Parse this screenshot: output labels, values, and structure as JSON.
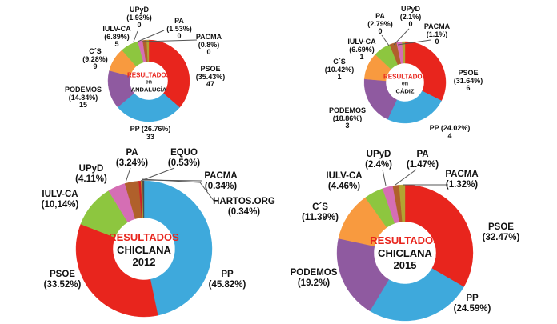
{
  "page": {
    "background": "#ffffff",
    "accent_red": "#e8251d",
    "label_color": "#111111",
    "leader_line_color": "#555555"
  },
  "chart_data": [
    {
      "id": "andalucia",
      "type": "pie",
      "title": "RESULTADOS en ANDALUCÍA",
      "center_lines": [
        "RESULTADOS",
        "en",
        "ANDALUCÍA"
      ],
      "legend_position": "around-slices",
      "segments": [
        {
          "name": "PSOE",
          "percent": 35.43,
          "seats": 47,
          "color": "#e8251d",
          "label_lines": [
            "PSOE",
            "(35.43%)",
            "47"
          ]
        },
        {
          "name": "PP",
          "percent": 26.76,
          "seats": 33,
          "color": "#3ea9dc",
          "label_lines": [
            "PP (26.76%)",
            "33"
          ]
        },
        {
          "name": "PODEMOS",
          "percent": 14.84,
          "seats": 15,
          "color": "#8f5aa0",
          "label_lines": [
            "PODEMOS",
            "(14.84%)",
            "15"
          ]
        },
        {
          "name": "C´S",
          "percent": 9.28,
          "seats": 9,
          "color": "#f89a3f",
          "label_lines": [
            "C´S",
            "(9.28%)",
            "9"
          ]
        },
        {
          "name": "IULV-CA",
          "percent": 6.89,
          "seats": 5,
          "color": "#8dc63f",
          "label_lines": [
            "IULV-CA",
            "(6.89%)",
            "5"
          ]
        },
        {
          "name": "UPyD",
          "percent": 1.93,
          "seats": 0,
          "color": "#d56eb4",
          "label_lines": [
            "UPyD",
            "(1.93%)",
            "0"
          ]
        },
        {
          "name": "PA",
          "percent": 1.53,
          "seats": 0,
          "color": "#b0602b",
          "label_lines": [
            "PA",
            "(1.53%)",
            "0"
          ]
        },
        {
          "name": "PACMA",
          "percent": 0.8,
          "seats": 0,
          "color": "#b2a432",
          "label_lines": [
            "PACMA",
            "(0.8%)",
            "0"
          ]
        }
      ]
    },
    {
      "id": "cadiz",
      "type": "pie",
      "title": "RESULTADOS en CÁDIZ",
      "center_lines": [
        "RESULTADOS",
        "en",
        "CÁDIZ"
      ],
      "legend_position": "around-slices",
      "segments": [
        {
          "name": "PSOE",
          "percent": 31.64,
          "seats": 6,
          "color": "#e8251d",
          "label_lines": [
            "PSOE",
            "(31.64%)",
            "6"
          ]
        },
        {
          "name": "PP",
          "percent": 24.02,
          "seats": 4,
          "color": "#3ea9dc",
          "label_lines": [
            "PP (24.02%)",
            "4"
          ]
        },
        {
          "name": "PODEMOS",
          "percent": 18.86,
          "seats": 3,
          "color": "#8f5aa0",
          "label_lines": [
            "PODEMOS",
            "(18.86%)",
            "3"
          ]
        },
        {
          "name": "C´S",
          "percent": 10.42,
          "seats": 1,
          "color": "#f89a3f",
          "label_lines": [
            "C´S",
            "(10.42%)",
            "1"
          ]
        },
        {
          "name": "IULV-CA",
          "percent": 6.69,
          "seats": 1,
          "color": "#8dc63f",
          "label_lines": [
            "IULV-CA",
            "(6.69%)",
            "1"
          ]
        },
        {
          "name": "PA",
          "percent": 2.79,
          "seats": 0,
          "color": "#b0602b",
          "label_lines": [
            "PA",
            "(2.79%)",
            "0"
          ]
        },
        {
          "name": "UPyD",
          "percent": 2.1,
          "seats": 0,
          "color": "#d56eb4",
          "label_lines": [
            "UPyD",
            "(2.1%)",
            "0"
          ]
        },
        {
          "name": "PACMA",
          "percent": 1.1,
          "seats": 0,
          "color": "#b2a432",
          "label_lines": [
            "PACMA",
            "(1.1%)",
            "0"
          ]
        }
      ]
    },
    {
      "id": "chiclana-2012",
      "type": "pie",
      "title": "RESULTADOS CHICLANA 2012",
      "center_lines": [
        "RESULTADOS",
        "CHICLANA",
        "2012"
      ],
      "legend_position": "around-slices",
      "segments": [
        {
          "name": "PP",
          "percent": 45.82,
          "color": "#3ea9dc",
          "label_lines": [
            "PP",
            "(45.82%)"
          ]
        },
        {
          "name": "PSOE",
          "percent": 33.52,
          "color": "#e8251d",
          "label_lines": [
            "PSOE",
            "(33.52%)"
          ]
        },
        {
          "name": "IULV-CA",
          "percent": 10.14,
          "color": "#8dc63f",
          "label_lines": [
            "IULV-CA",
            "(10,14%)"
          ]
        },
        {
          "name": "UPyD",
          "percent": 4.11,
          "color": "#d56eb4",
          "label_lines": [
            "UPyD",
            "(4.11%)"
          ]
        },
        {
          "name": "PA",
          "percent": 3.24,
          "color": "#b0602b",
          "label_lines": [
            "PA",
            "(3.24%)"
          ]
        },
        {
          "name": "EQUO",
          "percent": 0.53,
          "color": "#cb2026",
          "label_lines": [
            "EQUO",
            "(0.53%)"
          ]
        },
        {
          "name": "PACMA",
          "percent": 0.34,
          "color": "#b2a432",
          "label_lines": [
            "PACMA",
            "(0.34%)"
          ]
        },
        {
          "name": "HARTOS.ORG",
          "percent": 0.34,
          "color": "#4d4d4d",
          "label_lines": [
            "HARTOS.ORG",
            "(0.34%)"
          ]
        }
      ]
    },
    {
      "id": "chiclana-2015",
      "type": "pie",
      "title": "RESULTADOS CHICLANA 2015",
      "center_lines": [
        "RESULTADOS",
        "CHICLANA",
        "2015"
      ],
      "legend_position": "around-slices",
      "segments": [
        {
          "name": "PSOE",
          "percent": 32.47,
          "color": "#e8251d",
          "label_lines": [
            "PSOE",
            "(32.47%)"
          ]
        },
        {
          "name": "PP",
          "percent": 24.59,
          "color": "#3ea9dc",
          "label_lines": [
            "PP",
            "(24.59%)"
          ]
        },
        {
          "name": "PODEMOS",
          "percent": 19.2,
          "color": "#8f5aa0",
          "label_lines": [
            "PODEMOS",
            "(19.2%)"
          ]
        },
        {
          "name": "C´S",
          "percent": 11.39,
          "color": "#f89a3f",
          "label_lines": [
            "C´S",
            "(11.39%)"
          ]
        },
        {
          "name": "IULV-CA",
          "percent": 4.46,
          "color": "#8dc63f",
          "label_lines": [
            "IULV-CA",
            "(4.46%)"
          ]
        },
        {
          "name": "UPyD",
          "percent": 2.4,
          "color": "#d56eb4",
          "label_lines": [
            "UPyD",
            "(2.4%)"
          ]
        },
        {
          "name": "PA",
          "percent": 1.47,
          "color": "#b0602b",
          "label_lines": [
            "PA",
            "(1.47%)"
          ]
        },
        {
          "name": "PACMA",
          "percent": 1.32,
          "color": "#b2a432",
          "label_lines": [
            "PACMA",
            "(1.32%)"
          ]
        }
      ]
    }
  ]
}
